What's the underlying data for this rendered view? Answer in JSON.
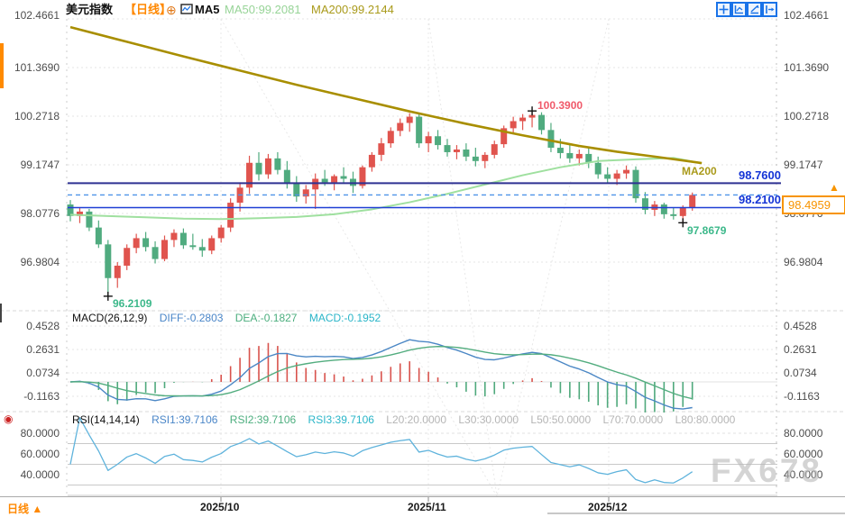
{
  "header": {
    "symbol": "美元指数",
    "period": "【日线】",
    "ma5": "MA5",
    "ma50": "MA50:99.2081",
    "ma200": "MA200:99.2144"
  },
  "icons": {
    "plus_glyph": "⊕",
    "arrow_up_glyph": "▲",
    "live_glyph": "◉",
    "toolbar": [
      "crosshair-icon",
      "auto-fit-icon",
      "scale-tool-icon",
      "pan-right-icon"
    ]
  },
  "axes": {
    "main": {
      "labels": [
        "102.4661",
        "101.3690",
        "100.2718",
        "99.1747",
        "98.0776",
        "96.9804"
      ]
    },
    "macd": {
      "labels": [
        "0.4528",
        "0.2631",
        "0.0734",
        "-0.1163"
      ]
    },
    "rsi": {
      "labels": [
        "80.0000",
        "60.0000",
        "40.0000"
      ]
    }
  },
  "overlays": {
    "resistance_label": "98.7600",
    "support_label": "98.2100",
    "last_price_label": "98.4959",
    "ma200_tag": "MA200"
  },
  "annotations": {
    "high": "100.3900",
    "low": "96.2109",
    "recent_low": "97.8679"
  },
  "macd_panel": {
    "title": "MACD(26,12,9)",
    "diff": "DIFF:-0.2803",
    "dea": "DEA:-0.1827",
    "macd": "MACD:-0.1952"
  },
  "rsi_panel": {
    "title": "RSI(14,14,14)",
    "rsi1": "RSI1:39.7106",
    "rsi2": "RSI2:39.7106",
    "rsi3": "RSI3:39.7106",
    "l20": "L20:20.0000",
    "l30": "L30:30.0000",
    "l50": "L50:50.0000",
    "l70": "L70:70.0000",
    "l80": "L80:80.0000"
  },
  "x_axis": {
    "dates": [
      "2025/10",
      "2025/11",
      "2025/12"
    ],
    "period_tab": "日线"
  },
  "watermark": "FX678",
  "chart_data": {
    "type": "candlestick",
    "title": "美元指数 日线",
    "ylim": [
      96.4,
      102.6
    ],
    "y_ticks": [
      102.4661,
      101.369,
      100.2718,
      99.1747,
      98.0776,
      96.9804
    ],
    "x_ticks": [
      "2025/10",
      "2025/11",
      "2025/12"
    ],
    "price_lines": {
      "resistance": 98.76,
      "support": 98.21,
      "last": 98.4959
    },
    "marked_high": {
      "index": 49,
      "price": 100.39
    },
    "marked_low": {
      "index": 4,
      "price": 96.2109
    },
    "marked_recent_low": {
      "index": 65,
      "price": 97.8679
    },
    "ma50_points": [
      [
        0,
        98.05
      ],
      [
        4,
        98.02
      ],
      [
        8,
        97.99
      ],
      [
        12,
        97.96
      ],
      [
        16,
        97.95
      ],
      [
        20,
        97.97
      ],
      [
        24,
        98.0
      ],
      [
        28,
        98.06
      ],
      [
        32,
        98.17
      ],
      [
        36,
        98.33
      ],
      [
        40,
        98.52
      ],
      [
        44,
        98.73
      ],
      [
        48,
        98.94
      ],
      [
        52,
        99.12
      ],
      [
        56,
        99.26
      ],
      [
        60,
        99.3
      ],
      [
        64,
        99.33
      ],
      [
        67,
        99.21
      ]
    ],
    "ma200_points": [
      [
        0,
        102.28
      ],
      [
        6,
        101.95
      ],
      [
        12,
        101.62
      ],
      [
        18,
        101.3
      ],
      [
        24,
        100.98
      ],
      [
        30,
        100.68
      ],
      [
        36,
        100.38
      ],
      [
        42,
        100.1
      ],
      [
        48,
        99.84
      ],
      [
        54,
        99.6
      ],
      [
        58,
        99.47
      ],
      [
        62,
        99.36
      ],
      [
        67,
        99.2144
      ]
    ],
    "macd_params": [
      26,
      12,
      9
    ],
    "rsi_params": [
      14,
      14,
      14
    ],
    "macd_ticks": [
      0.4528,
      0.2631,
      0.0734,
      -0.1163
    ],
    "rsi_ticks": [
      80,
      60,
      40
    ],
    "rsi_levels": [
      20,
      30,
      50,
      70,
      80
    ],
    "colors": {
      "up": "#e0544e",
      "down": "#50ab7f",
      "ma50": "#9fe09f",
      "ma200": "#a88e00",
      "resistance_line": "#2e3192",
      "support_line": "#1f3fd4",
      "last_dashed": "#4f94e8",
      "last_box": "#f79400",
      "diff_line": "#4b87c5",
      "dea_line": "#53ad7f",
      "hist_up": "#d8524c",
      "hist_down": "#4fa97c",
      "rsi_line": "#5fb3dc"
    },
    "candles": [
      [
        98.28,
        98.38,
        97.9,
        98.02
      ],
      [
        98.02,
        98.2,
        97.86,
        98.12
      ],
      [
        98.12,
        98.18,
        97.68,
        97.76
      ],
      [
        97.76,
        97.92,
        97.3,
        97.38
      ],
      [
        97.38,
        97.48,
        96.2109,
        96.62
      ],
      [
        96.62,
        96.98,
        96.4,
        96.9
      ],
      [
        96.9,
        97.38,
        96.8,
        97.3
      ],
      [
        97.3,
        97.62,
        97.18,
        97.52
      ],
      [
        97.52,
        97.66,
        97.22,
        97.32
      ],
      [
        97.32,
        97.45,
        96.95,
        97.05
      ],
      [
        97.05,
        97.58,
        97.0,
        97.48
      ],
      [
        97.48,
        97.72,
        97.32,
        97.64
      ],
      [
        97.64,
        97.74,
        97.28,
        97.36
      ],
      [
        97.36,
        97.62,
        97.26,
        97.32
      ],
      [
        97.32,
        97.5,
        97.1,
        97.24
      ],
      [
        97.24,
        97.58,
        97.16,
        97.52
      ],
      [
        97.52,
        97.82,
        97.42,
        97.76
      ],
      [
        97.76,
        98.42,
        97.66,
        98.32
      ],
      [
        98.32,
        98.78,
        98.12,
        98.66
      ],
      [
        98.66,
        99.38,
        98.52,
        99.22
      ],
      [
        99.22,
        99.46,
        98.82,
        98.96
      ],
      [
        98.96,
        99.42,
        98.86,
        99.32
      ],
      [
        99.32,
        99.46,
        98.96,
        99.06
      ],
      [
        99.06,
        99.26,
        98.64,
        98.76
      ],
      [
        98.76,
        98.92,
        98.34,
        98.46
      ],
      [
        98.46,
        98.72,
        98.3,
        98.62
      ],
      [
        98.62,
        98.98,
        98.18,
        98.86
      ],
      [
        98.86,
        99.06,
        98.7,
        98.78
      ],
      [
        98.78,
        98.96,
        98.6,
        98.92
      ],
      [
        98.92,
        99.12,
        98.76,
        98.86
      ],
      [
        98.86,
        99.02,
        98.54,
        98.7
      ],
      [
        98.7,
        99.16,
        98.64,
        99.12
      ],
      [
        99.12,
        99.46,
        99.02,
        99.4
      ],
      [
        99.4,
        99.78,
        99.26,
        99.66
      ],
      [
        99.66,
        100.02,
        99.56,
        99.94
      ],
      [
        99.94,
        100.22,
        99.82,
        100.12
      ],
      [
        100.12,
        100.34,
        99.92,
        100.26
      ],
      [
        100.26,
        100.34,
        99.56,
        99.66
      ],
      [
        99.66,
        99.92,
        99.46,
        99.82
      ],
      [
        99.82,
        99.96,
        99.52,
        99.62
      ],
      [
        99.62,
        99.76,
        99.36,
        99.46
      ],
      [
        99.46,
        99.62,
        99.3,
        99.52
      ],
      [
        99.52,
        99.66,
        99.26,
        99.36
      ],
      [
        99.36,
        99.56,
        99.14,
        99.26
      ],
      [
        99.26,
        99.46,
        99.1,
        99.4
      ],
      [
        99.4,
        99.72,
        99.32,
        99.64
      ],
      [
        99.64,
        100.06,
        99.56,
        100.0
      ],
      [
        100.0,
        100.26,
        99.86,
        100.16
      ],
      [
        100.16,
        100.32,
        99.96,
        100.24
      ],
      [
        100.24,
        100.39,
        100.02,
        100.3
      ],
      [
        100.3,
        100.36,
        99.86,
        99.96
      ],
      [
        99.96,
        100.12,
        99.46,
        99.56
      ],
      [
        99.56,
        99.76,
        99.32,
        99.44
      ],
      [
        99.44,
        99.62,
        99.22,
        99.32
      ],
      [
        99.32,
        99.52,
        99.16,
        99.42
      ],
      [
        99.42,
        99.56,
        99.1,
        99.22
      ],
      [
        99.22,
        99.36,
        98.86,
        98.96
      ],
      [
        98.96,
        99.12,
        98.76,
        98.86
      ],
      [
        98.86,
        99.06,
        98.72,
        98.98
      ],
      [
        98.98,
        99.16,
        98.86,
        99.06
      ],
      [
        99.06,
        99.14,
        98.32,
        98.42
      ],
      [
        98.42,
        98.56,
        98.06,
        98.16
      ],
      [
        98.16,
        98.36,
        98.02,
        98.28
      ],
      [
        98.28,
        98.32,
        97.96,
        98.06
      ],
      [
        98.06,
        98.2,
        97.94,
        98.02
      ],
      [
        98.02,
        98.26,
        97.8679,
        98.22
      ],
      [
        98.22,
        98.55,
        98.14,
        98.4959
      ]
    ]
  }
}
